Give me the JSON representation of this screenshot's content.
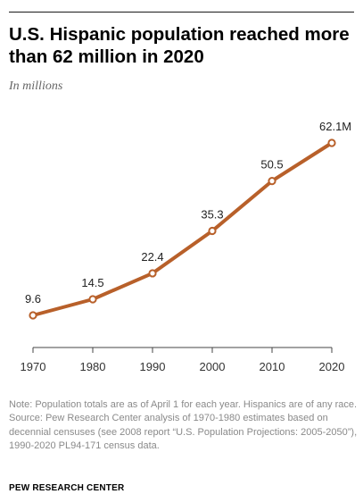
{
  "header": {
    "title": "U.S. Hispanic population reached more than 62 million in 2020",
    "subtitle": "In millions"
  },
  "footer": {
    "note": "Note: Population totals are as of April 1 for each year. Hispanics are of any race.",
    "source": "Source: Pew Research Center analysis of 1970-1980 estimates based on decennial censuses (see 2008 report “U.S. Population Projections: 2005-2050”), 1990-2020 PL94-171 census data.",
    "brand": "PEW RESEARCH CENTER"
  },
  "colors": {
    "line": "#b8602a",
    "marker_fill": "#ffffff",
    "axis": "#444444"
  },
  "chart_data": {
    "type": "line",
    "title": "U.S. Hispanic population reached more than 62 million in 2020",
    "subtitle": "In millions",
    "xlabel": "",
    "ylabel": "",
    "x": [
      1970,
      1980,
      1990,
      2000,
      2010,
      2020
    ],
    "series": [
      {
        "values": [
          9.6,
          14.5,
          22.4,
          35.3,
          50.5,
          62.1
        ]
      }
    ],
    "data_labels": [
      "9.6",
      "14.5",
      "22.4",
      "35.3",
      "50.5",
      "62.1M"
    ],
    "xlim": [
      1970,
      2020
    ],
    "ylim": [
      0,
      62.1
    ],
    "grid": false,
    "legend": "none"
  }
}
